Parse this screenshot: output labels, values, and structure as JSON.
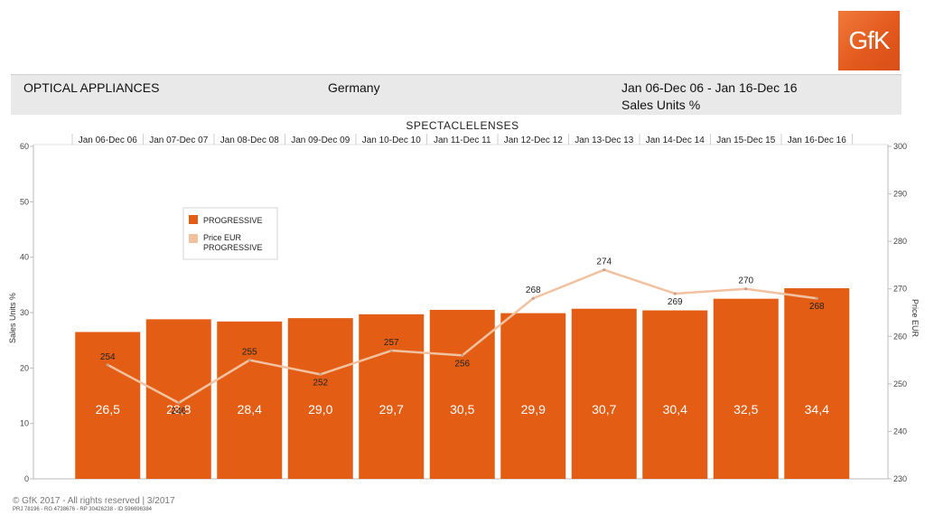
{
  "logo": {
    "text": "GfK"
  },
  "header": {
    "category": "OPTICAL APPLIANCES",
    "country": "Germany",
    "period": "Jan 06-Dec 06 - Jan 16-Dec 16",
    "measure": "Sales Units %"
  },
  "chart_data": {
    "type": "bar",
    "title": "SPECTACLELENSES",
    "categories": [
      "Jan 06-Dec 06",
      "Jan 07-Dec 07",
      "Jan 08-Dec 08",
      "Jan 09-Dec 09",
      "Jan 10-Dec 10",
      "Jan 11-Dec 11",
      "Jan 12-Dec 12",
      "Jan 13-Dec 13",
      "Jan 14-Dec 14",
      "Jan 15-Dec 15",
      "Jan 16-Dec 16"
    ],
    "series": [
      {
        "name": "PROGRESSIVE",
        "type": "bar",
        "axis": "left",
        "values": [
          26.5,
          28.8,
          28.4,
          29.0,
          29.7,
          30.5,
          29.9,
          30.7,
          30.4,
          32.5,
          34.4
        ],
        "labels": [
          "26,5",
          "28,8",
          "28,4",
          "29,0",
          "29,7",
          "30,5",
          "29,9",
          "30,7",
          "30,4",
          "32,5",
          "34,4"
        ],
        "color": "#e35d14"
      },
      {
        "name": "Price EUR PROGRESSIVE",
        "type": "line",
        "axis": "right",
        "values": [
          254,
          246,
          255,
          252,
          257,
          256,
          268,
          274,
          269,
          270,
          268
        ],
        "labels": [
          "254",
          "246",
          "255",
          "252",
          "257",
          "256",
          "268",
          "274",
          "269",
          "270",
          "268"
        ],
        "color": "#f2c2a0"
      }
    ],
    "legend": [
      "PROGRESSIVE",
      "Price EUR PROGRESSIVE"
    ],
    "ylabel": "Sales Units %",
    "y2label": "Price EUR",
    "ylim": [
      0,
      60
    ],
    "yticks": [
      0,
      10,
      20,
      30,
      40,
      50,
      60
    ],
    "y2lim": [
      230,
      300
    ],
    "y2ticks": [
      230,
      240,
      250,
      260,
      270,
      280,
      290,
      300
    ],
    "legend_position": "upper-left"
  },
  "footer": {
    "copyright": "© GfK 2017 - All rights reserved | 3/2017",
    "reference": "PRJ 78196 - RG 4738676 - RP 30426238 - ID 596696384"
  }
}
